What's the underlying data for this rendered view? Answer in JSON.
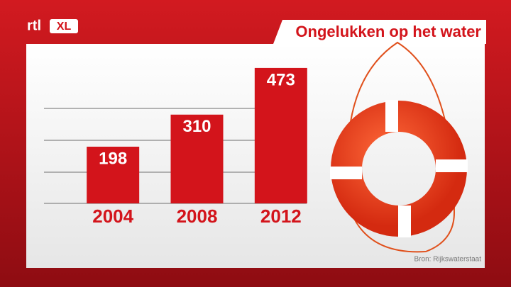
{
  "logo": {
    "brand": "rtl",
    "channel": "XL"
  },
  "chart_data": {
    "type": "bar",
    "title": "Ongelukken op het water",
    "categories": [
      "2004",
      "2008",
      "2012"
    ],
    "values": [
      198,
      310,
      473
    ],
    "color": "#d3141b",
    "ylim": [
      0,
      500
    ],
    "source": "Bron: Rijkswaterstaat"
  }
}
